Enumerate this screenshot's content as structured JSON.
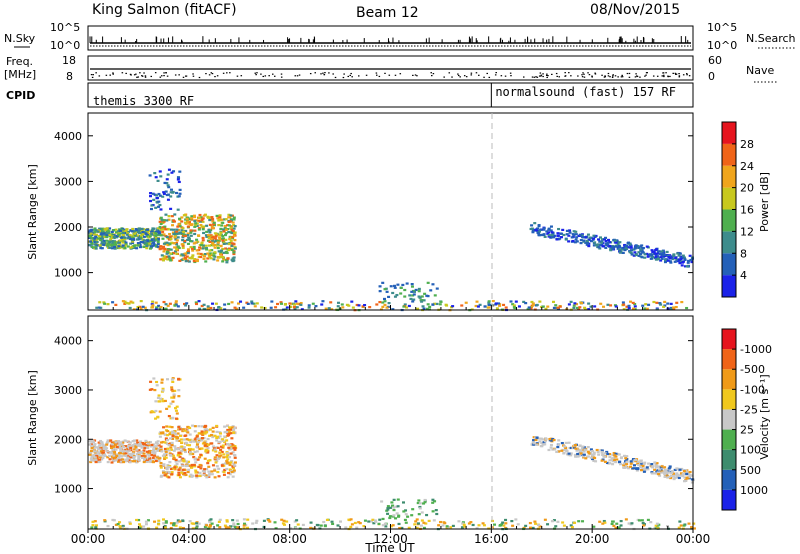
{
  "header": {
    "station": "King Salmon (fitACF)",
    "beam": "Beam 12",
    "date": "08/Nov/2015"
  },
  "chart_data": [
    {
      "type": "line",
      "title": "",
      "left_label": "N.Sky",
      "right_label": "N.Search",
      "left_ticks": [
        "10^5",
        "10^0"
      ],
      "right_ticks": [
        "10^5",
        "10^0"
      ],
      "series": [
        {
          "name": "N.Sky",
          "level": 0.3
        },
        {
          "name": "N.Search",
          "level": 0.15
        }
      ]
    },
    {
      "type": "line",
      "title": "",
      "left_label_top": "Freq.",
      "left_label_bottom": "[MHz]",
      "right_label": "Nave",
      "left_ticks": [
        18,
        8
      ],
      "right_ticks": [
        60,
        0
      ],
      "series": [
        {
          "name": "Freq.",
          "level": 0.42
        },
        {
          "name": "Nave",
          "level": 0.18
        }
      ]
    },
    {
      "type": "table",
      "label": "CPID",
      "segments": [
        {
          "label": "themis 3300 RF",
          "start": 0,
          "end": 16
        },
        {
          "label": "normalsound (fast) 157 RF",
          "start": 16,
          "end": 24
        }
      ]
    },
    {
      "type": "heatmap",
      "quantity": "Power",
      "ylabel": "Slant Range [km]",
      "xlim": [
        0,
        24
      ],
      "ylim": [
        180,
        4500
      ],
      "yticks": [
        1000,
        2000,
        3000,
        4000
      ],
      "colorbar_label": "Power [dB]",
      "colorbar_ticks": [
        "4",
        "8",
        "12",
        "16",
        "20",
        "24",
        "28"
      ],
      "colorbar_colors": [
        "#1b22e8",
        "#2460b8",
        "#3d8c8c",
        "#4faf4f",
        "#c8c81e",
        "#f0a51c",
        "#f06418",
        "#e6141e"
      ],
      "scatter_bands": [
        {
          "hours": [
            0,
            2.8
          ],
          "range_km": [
            1550,
            2000
          ],
          "dominant": "green-blue"
        },
        {
          "hours": [
            2.8,
            5.8
          ],
          "range_km": [
            1250,
            2300
          ],
          "dominant": "orange-yellow"
        },
        {
          "hours": [
            2.4,
            3.6
          ],
          "range_km": [
            2400,
            3300
          ],
          "dominant": "blue"
        },
        {
          "hours": [
            11.5,
            13.8
          ],
          "range_km": [
            400,
            800
          ],
          "dominant": "blue"
        },
        {
          "hours": [
            17.5,
            24
          ],
          "range_km": [
            1100,
            2100
          ],
          "dominant": "blue"
        },
        {
          "hours": [
            0,
            24
          ],
          "range_km": [
            200,
            400
          ],
          "dominant": "mixed"
        }
      ]
    },
    {
      "type": "heatmap",
      "quantity": "Velocity",
      "ylabel": "Slant Range [km]",
      "xlim": [
        0,
        24
      ],
      "ylim": [
        180,
        4500
      ],
      "yticks": [
        1000,
        2000,
        3000,
        4000
      ],
      "xticks": [
        "00:00",
        "04:00",
        "08:00",
        "12:00",
        "16:00",
        "20:00",
        "00:00"
      ],
      "xlabel": "Time UT",
      "colorbar_label": "Velocity [m s⁻¹]",
      "colorbar_ticks": [
        "1000",
        "500",
        "100",
        "25",
        "-25",
        "-100",
        "-500",
        "-1000"
      ],
      "colorbar_colors": [
        "#1b22e8",
        "#2460b8",
        "#3d8c6e",
        "#4faf4f",
        "#c8c8c8",
        "#f0c81e",
        "#f09a18",
        "#f06418",
        "#e6141e"
      ],
      "scatter_bands": [
        {
          "hours": [
            0,
            2.8
          ],
          "range_km": [
            1550,
            2000
          ],
          "dominant": "grey"
        },
        {
          "hours": [
            2.8,
            5.8
          ],
          "range_km": [
            1250,
            2300
          ],
          "dominant": "grey-orange"
        },
        {
          "hours": [
            2.4,
            3.6
          ],
          "range_km": [
            2400,
            3300
          ],
          "dominant": "orange"
        },
        {
          "hours": [
            11.5,
            13.8
          ],
          "range_km": [
            400,
            800
          ],
          "dominant": "green"
        },
        {
          "hours": [
            17.5,
            24
          ],
          "range_km": [
            1100,
            2100
          ],
          "dominant": "grey"
        },
        {
          "hours": [
            0,
            24
          ],
          "range_km": [
            200,
            400
          ],
          "dominant": "yellow-green"
        }
      ]
    }
  ]
}
